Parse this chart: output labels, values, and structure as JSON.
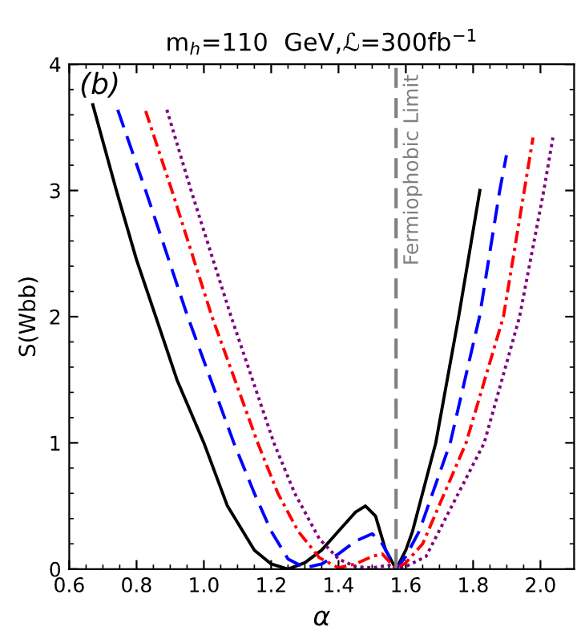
{
  "chart_data": {
    "type": "line",
    "title": "m$_{h}$=110  GeV,ℒ=300fb$^{−1}$",
    "xlabel": "α",
    "ylabel": "S(Wbb)",
    "xlim": [
      0.6,
      2.1
    ],
    "ylim": [
      0,
      4
    ],
    "xticks": [
      0.6,
      0.8,
      {
        "value": 1,
        "label": "1.0"
      },
      1.2,
      1.4,
      1.6,
      1.8,
      {
        "value": 2,
        "label": "2.0"
      }
    ],
    "yticks": [
      0,
      1,
      2,
      3,
      4
    ],
    "grid": false,
    "legend": false,
    "marker": "none",
    "annotations": [
      "(b)"
    ],
    "ref_lines": [
      {
        "axis": "x",
        "value": 1.571,
        "label": "Fermiophobic Limit",
        "color": "#808080",
        "line_style": "dashed"
      }
    ],
    "series": [
      {
        "color": "#000000",
        "line_style": "solid",
        "x": [
          0.67,
          0.74,
          0.8,
          0.857,
          0.92,
          1.0,
          1.07,
          1.15,
          1.2,
          1.25,
          1.3,
          1.35,
          1.4,
          1.45,
          1.48,
          1.51,
          1.54,
          1.571,
          1.6,
          1.62,
          1.689,
          1.757,
          1.82
        ],
        "values": [
          3.68,
          3.0,
          2.45,
          2.0,
          1.5,
          1.0,
          0.5,
          0.15,
          0.04,
          0.0,
          0.05,
          0.15,
          0.3,
          0.45,
          0.5,
          0.42,
          0.15,
          0.0,
          0.15,
          0.3,
          1.0,
          2.0,
          3.0
        ]
      },
      {
        "color": "#0000ff",
        "line_style": "dashed",
        "x": [
          0.744,
          0.827,
          0.952,
          1.089,
          1.15,
          1.2,
          1.25,
          1.3,
          1.35,
          1.4,
          1.45,
          1.5,
          1.53,
          1.571,
          1.6,
          1.64,
          1.732,
          1.819,
          1.879,
          1.899
        ],
        "values": [
          3.64,
          3.0,
          2.0,
          1.0,
          0.6,
          0.3,
          0.08,
          0.01,
          0.04,
          0.12,
          0.22,
          0.28,
          0.2,
          0.0,
          0.1,
          0.3,
          1.0,
          2.0,
          3.0,
          3.28
        ]
      },
      {
        "color": "#ff0000",
        "line_style": "dashdot",
        "x": [
          0.827,
          0.905,
          1.024,
          1.16,
          1.22,
          1.28,
          1.343,
          1.4,
          1.45,
          1.5,
          1.53,
          1.571,
          1.6,
          1.65,
          1.779,
          1.89,
          1.952,
          1.978
        ],
        "values": [
          3.63,
          3.0,
          2.0,
          1.0,
          0.6,
          0.3,
          0.09,
          0.01,
          0.04,
          0.1,
          0.12,
          0.0,
          0.05,
          0.2,
          1.0,
          2.0,
          3.0,
          3.42
        ]
      },
      {
        "color": "#800080",
        "line_style": "dotted",
        "x": [
          0.89,
          0.962,
          1.081,
          1.208,
          1.27,
          1.343,
          1.4,
          1.45,
          1.5,
          1.55,
          1.571,
          1.6,
          1.66,
          1.833,
          1.938,
          2.01,
          2.037
        ],
        "values": [
          3.64,
          3.0,
          2.0,
          1.0,
          0.6,
          0.24,
          0.08,
          0.02,
          0.01,
          0.03,
          0.0,
          0.02,
          0.1,
          1.0,
          2.0,
          3.0,
          3.42
        ]
      }
    ]
  }
}
